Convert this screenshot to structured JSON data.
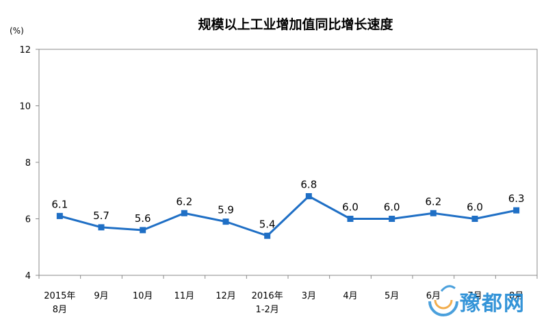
{
  "chart_data": {
    "type": "line",
    "title": "规模以上工业增加值同比增长速度",
    "unit_label": "(%)",
    "ylim": [
      4,
      12
    ],
    "yticks": [
      4,
      6,
      8,
      10,
      12
    ],
    "grid": false,
    "categories": [
      [
        "2015年",
        "8月"
      ],
      [
        "9月"
      ],
      [
        "10月"
      ],
      [
        "11月"
      ],
      [
        "12月"
      ],
      [
        "2016年",
        "1-2月"
      ],
      [
        "3月"
      ],
      [
        "4月"
      ],
      [
        "5月"
      ],
      [
        "6月"
      ],
      [
        "7月"
      ],
      [
        "8月"
      ]
    ],
    "values": [
      6.1,
      5.7,
      5.6,
      6.2,
      5.9,
      5.4,
      6.8,
      6.0,
      6.0,
      6.2,
      6.0,
      6.3
    ],
    "data_labels": [
      "6.1",
      "5.7",
      "5.6",
      "6.2",
      "5.9",
      "5.4",
      "6.8",
      "6.0",
      "6.0",
      "6.2",
      "6.0",
      "6.3"
    ],
    "line_color": "#1f6fc5",
    "marker": "square"
  },
  "watermark": {
    "text": "豫都网",
    "color": "#2a8fd6"
  }
}
